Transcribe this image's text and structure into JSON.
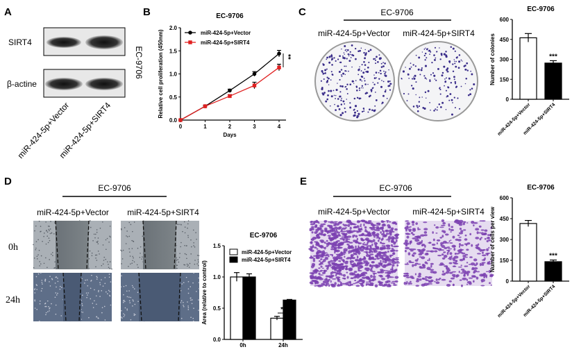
{
  "panels": {
    "A": {
      "label": "A",
      "row1": "SIRT4",
      "row2": "β-actine",
      "cell_line": "EC-9706",
      "lanes": [
        "miR-424-5p+Vector",
        "miR-424-5p+SIRT4"
      ]
    },
    "B": {
      "label": "B"
    },
    "C": {
      "label": "C",
      "header": "EC-9706",
      "conditions": [
        "miR-424-5p+Vector",
        "miR-424-5p+SIRT4"
      ]
    },
    "D": {
      "label": "D",
      "header": "EC-9706",
      "conditions": [
        "miR-424-5p+Vector",
        "miR-424-5p+SIRT4"
      ],
      "rows": [
        "0h",
        "24h"
      ]
    },
    "E": {
      "label": "E",
      "header": "EC-9706",
      "conditions": [
        "miR-424-5p+Vector",
        "miR-424-5p+SIRT4"
      ]
    }
  },
  "colors": {
    "vector": "#000000",
    "sirt4": "#e02020",
    "stain": "#7a3fb0"
  },
  "chart_data": [
    {
      "id": "B",
      "type": "line",
      "title": "EC-9706",
      "xlabel": "Days",
      "ylabel": "Relative cell proliferation (450nm)",
      "x": [
        0,
        1,
        2,
        3,
        4
      ],
      "xticks": [
        "0",
        "1",
        "2",
        "3",
        "4"
      ],
      "yticks": [
        "0.0",
        "0.5",
        "1.0",
        "1.5",
        "2.0"
      ],
      "ylim": [
        0,
        2
      ],
      "xlim": [
        0,
        4
      ],
      "series": [
        {
          "name": "miR-424-5p+Vector",
          "values": [
            0,
            0.3,
            0.64,
            1.0,
            1.44
          ],
          "errors": [
            0,
            0.02,
            0.03,
            0.05,
            0.07
          ],
          "color": "#000000"
        },
        {
          "name": "miR-424-5p+SIRT4",
          "values": [
            0,
            0.3,
            0.52,
            0.75,
            1.14
          ],
          "errors": [
            0,
            0.02,
            0.03,
            0.07,
            0.07
          ],
          "color": "#e02020"
        }
      ],
      "annotation": "**",
      "legend": "top-left"
    },
    {
      "id": "C",
      "type": "bar",
      "title": "EC-9706",
      "ylabel": "Number of colonies",
      "categories": [
        "miR-424-5p+Vector",
        "miR-424-5p+SIRT4"
      ],
      "values": [
        462,
        272
      ],
      "errors": [
        32,
        18
      ],
      "ylim": [
        0,
        600
      ],
      "yticks": [
        "0",
        "150",
        "300",
        "450",
        "600"
      ],
      "annotation": "***"
    },
    {
      "id": "D",
      "type": "bar",
      "title": "EC-9706",
      "ylabel": "Area (relative to control)",
      "categories": [
        "0h",
        "24h"
      ],
      "ylim": [
        0,
        1.5
      ],
      "yticks": [
        "0.0",
        "0.5",
        "1.0",
        "1.5"
      ],
      "series": [
        {
          "name": "miR-424-5p+Vector",
          "values": [
            1.0,
            0.34
          ],
          "errors": [
            0.07,
            0.03
          ]
        },
        {
          "name": "miR-424-5p+SIRT4",
          "values": [
            1.0,
            0.63
          ],
          "errors": [
            0.05,
            0.01
          ]
        }
      ],
      "annotation": "**",
      "legend": "top"
    },
    {
      "id": "E",
      "type": "bar",
      "title": "EC-9706",
      "ylabel": "Number of cells per view",
      "categories": [
        "miR-424-5p+Vector",
        "miR-424-5p+SIRT4"
      ],
      "values": [
        415,
        140
      ],
      "errors": [
        22,
        12
      ],
      "ylim": [
        0,
        600
      ],
      "yticks": [
        "0",
        "150",
        "300",
        "450",
        "600"
      ],
      "annotation": "***"
    }
  ]
}
